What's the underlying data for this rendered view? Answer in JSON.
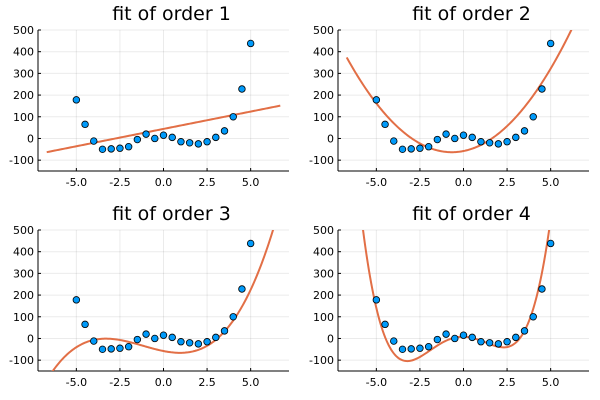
{
  "colors": {
    "points": "#009AFA",
    "fit": "#E26F46"
  },
  "chart_data": [
    {
      "type": "scatter",
      "title": "fit of order 1",
      "order": 1,
      "xlim": [
        -7.2,
        7.2
      ],
      "ylim": [
        -150,
        500
      ],
      "x_ticks": [
        -5.0,
        -2.5,
        0.0,
        2.5,
        5.0
      ],
      "x_tick_labels": [
        "-5.0",
        "-2.5",
        "0.0",
        "2.5",
        "5.0"
      ],
      "y_ticks": [
        -100,
        0,
        100,
        200,
        300,
        400,
        500
      ],
      "y_tick_labels": [
        "-100",
        "0",
        "100",
        "200",
        "300",
        "400",
        "500"
      ],
      "grid": true,
      "series": [
        {
          "type": "scatter",
          "x": [
            -5,
            -4.5,
            -4,
            -3.5,
            -3,
            -2.5,
            -2,
            -1.5,
            -1,
            -0.5,
            0,
            0.5,
            1,
            1.5,
            2,
            2.5,
            3,
            3.5,
            4,
            4.5,
            5
          ],
          "y": [
            178,
            65,
            -12,
            -50,
            -48,
            -45,
            -38,
            -5,
            20,
            0,
            15,
            5,
            -15,
            -20,
            -25,
            -15,
            5,
            35,
            100,
            228,
            438
          ]
        },
        {
          "type": "line",
          "x_range": [
            -6.7,
            6.7
          ],
          "coefficients": [
            44,
            16
          ]
        }
      ]
    },
    {
      "type": "scatter",
      "title": "fit of order 2",
      "order": 2,
      "xlim": [
        -7.2,
        7.2
      ],
      "ylim": [
        -150,
        500
      ],
      "x_ticks": [
        -5.0,
        -2.5,
        0.0,
        2.5,
        5.0
      ],
      "x_tick_labels": [
        "-5.0",
        "-2.5",
        "0.0",
        "2.5",
        "5.0"
      ],
      "y_ticks": [
        -100,
        0,
        100,
        200,
        300,
        400,
        500
      ],
      "y_tick_labels": [
        "-100",
        "0",
        "100",
        "200",
        "300",
        "400",
        "500"
      ],
      "grid": true,
      "series": [
        {
          "type": "scatter",
          "x": [
            -5,
            -4.5,
            -4,
            -3.5,
            -3,
            -2.5,
            -2,
            -1.5,
            -1,
            -0.5,
            0,
            0.5,
            1,
            1.5,
            2,
            2.5,
            3,
            3.5,
            4,
            4.5,
            5
          ],
          "y": [
            178,
            65,
            -12,
            -50,
            -48,
            -45,
            -38,
            -5,
            20,
            0,
            15,
            5,
            -15,
            -20,
            -25,
            -15,
            5,
            35,
            100,
            228,
            438
          ]
        },
        {
          "type": "line",
          "x_range": [
            -6.7,
            6.7
          ],
          "coefficients": [
            -58,
            16,
            12
          ]
        }
      ]
    },
    {
      "type": "scatter",
      "title": "fit of order 3",
      "order": 3,
      "xlim": [
        -7.2,
        7.2
      ],
      "ylim": [
        -150,
        500
      ],
      "x_ticks": [
        -5.0,
        -2.5,
        0.0,
        2.5,
        5.0
      ],
      "x_tick_labels": [
        "-5.0",
        "-2.5",
        "0.0",
        "2.5",
        "5.0"
      ],
      "y_ticks": [
        -100,
        0,
        100,
        200,
        300,
        400,
        500
      ],
      "y_tick_labels": [
        "-100",
        "0",
        "100",
        "200",
        "300",
        "400",
        "500"
      ],
      "grid": true,
      "series": [
        {
          "type": "scatter",
          "x": [
            -5,
            -4.5,
            -4,
            -3.5,
            -3,
            -2.5,
            -2,
            -1.5,
            -1,
            -0.5,
            0,
            0.5,
            1,
            1.5,
            2,
            2.5,
            3,
            3.5,
            4,
            4.5,
            5
          ],
          "y": [
            178,
            65,
            -12,
            -50,
            -48,
            -45,
            -38,
            -5,
            20,
            0,
            15,
            5,
            -15,
            -20,
            -25,
            -15,
            5,
            35,
            100,
            228,
            438
          ]
        },
        {
          "type": "line",
          "x_range": [
            -6.7,
            6.3
          ],
          "coefficients": [
            -58,
            -16,
            6,
            1.7
          ]
        }
      ]
    },
    {
      "type": "scatter",
      "title": "fit of order 4",
      "order": 4,
      "xlim": [
        -7.2,
        7.2
      ],
      "ylim": [
        -150,
        500
      ],
      "x_ticks": [
        -5.0,
        -2.5,
        0.0,
        2.5,
        5.0
      ],
      "x_tick_labels": [
        "-5.0",
        "-2.5",
        "0.0",
        "2.5",
        "5.0"
      ],
      "y_ticks": [
        -100,
        0,
        100,
        200,
        300,
        400,
        500
      ],
      "y_tick_labels": [
        "-100",
        "0",
        "100",
        "200",
        "300",
        "400",
        "500"
      ],
      "grid": true,
      "series": [
        {
          "type": "scatter",
          "x": [
            -5,
            -4.5,
            -4,
            -3.5,
            -3,
            -2.5,
            -2,
            -1.5,
            -1,
            -0.5,
            0,
            0.5,
            1,
            1.5,
            2,
            2.5,
            3,
            3.5,
            4,
            4.5,
            5
          ],
          "y": [
            178,
            65,
            -12,
            -50,
            -48,
            -45,
            -38,
            -5,
            20,
            0,
            15,
            5,
            -15,
            -20,
            -25,
            -15,
            5,
            35,
            100,
            228,
            438
          ]
        },
        {
          "type": "line",
          "x_range": [
            -6.7,
            6.7
          ],
          "coefficients": [
            8,
            -1.5,
            -19.5,
            1.7,
            1.32
          ]
        }
      ]
    }
  ]
}
